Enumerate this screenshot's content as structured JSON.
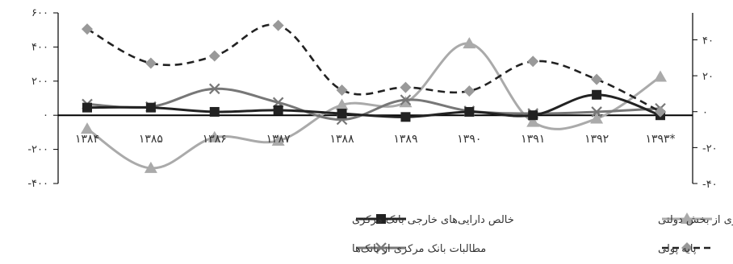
{
  "chart_data": {
    "type": "line",
    "categories": [
      "۱۳۸۴",
      "۱۳۸۵",
      "۱۳۸۶",
      "۱۳۸۷",
      "۱۳۸۸",
      "۱۳۸۹",
      "۱۳۹۰",
      "۱۳۹۱",
      "۱۳۹۲",
      "۱۳۹۳*"
    ],
    "left_axis": {
      "ylim": [
        -400,
        600
      ],
      "ticks": [
        600,
        400,
        200,
        0,
        -200,
        -400
      ],
      "tick_labels": [
        "۶۰۰",
        "۴۰۰",
        "۲۰۰",
        "۰",
        "-۲۰۰",
        "-۴۰۰"
      ]
    },
    "right_axis": {
      "ylim": [
        -40,
        55
      ],
      "ticks": [
        40,
        20,
        0,
        -20,
        -40
      ],
      "tick_labels": [
        "۴۰",
        "۲۰",
        "۰",
        "-۲۰",
        "-۴۰"
      ]
    },
    "series": [
      {
        "name": "خالص دارایی‌های خارجی بانک مرکزی",
        "axis": "left",
        "color": "#222222",
        "dash": "solid",
        "marker": "square",
        "values": [
          45,
          45,
          20,
          30,
          10,
          -10,
          20,
          0,
          120,
          0
        ]
      },
      {
        "name": "خالص مطالبات بانک مرکزی از بخش دولتی",
        "axis": "left",
        "color": "#aaaaaa",
        "dash": "solid",
        "marker": "triangle",
        "values": [
          -80,
          -310,
          -130,
          -150,
          60,
          75,
          420,
          -40,
          -20,
          225
        ]
      },
      {
        "name": "مطالبات بانک مرکزی از بانک‌ها",
        "axis": "left",
        "color": "#777777",
        "dash": "solid",
        "marker": "x",
        "values": [
          65,
          50,
          155,
          75,
          -25,
          90,
          25,
          10,
          20,
          40
        ]
      },
      {
        "name": "پایه پولی",
        "axis": "right",
        "color": "#222222",
        "dash": "dashed",
        "marker": "diamond",
        "values": [
          46,
          27,
          31,
          48,
          12,
          13.5,
          11.5,
          28,
          18,
          0
        ]
      }
    ],
    "legend": {
      "placement": "bottom",
      "order": [
        1,
        0,
        3,
        2
      ]
    },
    "grid": false
  }
}
